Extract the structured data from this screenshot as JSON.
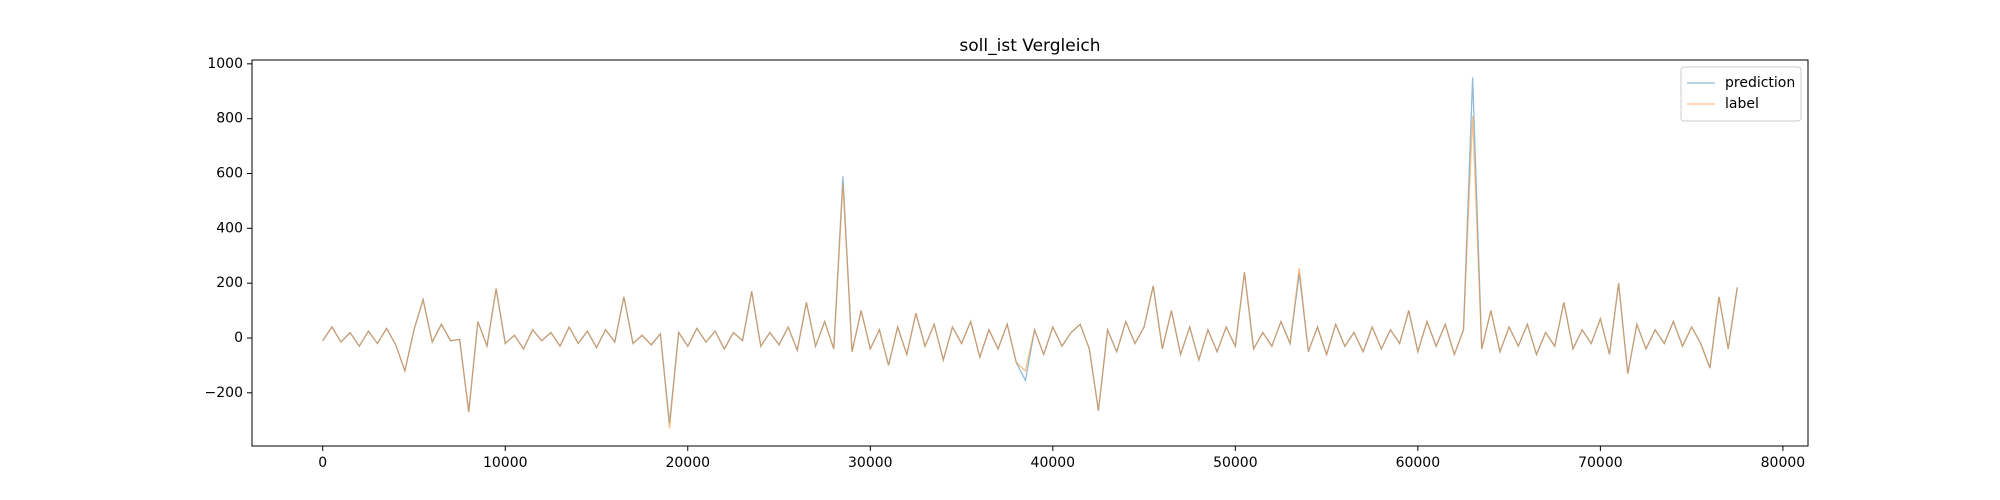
{
  "chart_data": {
    "type": "line",
    "title": "soll_ist Vergleich",
    "title_color": "#ff0000",
    "x": [
      0,
      500,
      1000,
      1500,
      2000,
      2500,
      3000,
      3500,
      4000,
      4500,
      5000,
      5500,
      6000,
      6500,
      7000,
      7500,
      8000,
      8500,
      9000,
      9500,
      10000,
      10500,
      11000,
      11500,
      12000,
      12500,
      13000,
      13500,
      14000,
      14500,
      15000,
      15500,
      16000,
      16500,
      17000,
      17500,
      18000,
      18500,
      19000,
      19500,
      20000,
      20500,
      21000,
      21500,
      22000,
      22500,
      23000,
      23500,
      24000,
      24500,
      25000,
      25500,
      26000,
      26500,
      27000,
      27500,
      28000,
      28500,
      29000,
      29500,
      30000,
      30500,
      31000,
      31500,
      32000,
      32500,
      33000,
      33500,
      34000,
      34500,
      35000,
      35500,
      36000,
      36500,
      37000,
      37500,
      38000,
      38500,
      39000,
      39500,
      40000,
      40500,
      41000,
      41500,
      42000,
      42500,
      43000,
      43500,
      44000,
      44500,
      45000,
      45500,
      46000,
      46500,
      47000,
      47500,
      48000,
      48500,
      49000,
      49500,
      50000,
      50500,
      51000,
      51500,
      52000,
      52500,
      53000,
      53500,
      54000,
      54500,
      55000,
      55500,
      56000,
      56500,
      57000,
      57500,
      58000,
      58500,
      59000,
      59500,
      60000,
      60500,
      61000,
      61500,
      62000,
      62500,
      63000,
      63500,
      64000,
      64500,
      65000,
      65500,
      66000,
      66500,
      67000,
      67500,
      68000,
      68500,
      69000,
      69500,
      70000,
      70500,
      71000,
      71500,
      72000,
      72500,
      73000,
      73500,
      74000,
      74500,
      75000,
      75500,
      76000,
      76500,
      77000,
      77500
    ],
    "series": [
      {
        "name": "prediction",
        "color": "#1f77b4",
        "values": [
          -10,
          40,
          -15,
          20,
          -30,
          25,
          -20,
          35,
          -25,
          -120,
          30,
          140,
          -15,
          50,
          -10,
          -5,
          -270,
          60,
          -30,
          180,
          -20,
          10,
          -40,
          30,
          -10,
          20,
          -30,
          40,
          -20,
          25,
          -35,
          30,
          -15,
          150,
          -20,
          10,
          -25,
          15,
          -310,
          20,
          -30,
          35,
          -15,
          25,
          -40,
          20,
          -10,
          170,
          -30,
          20,
          -25,
          40,
          -45,
          130,
          -30,
          60,
          -40,
          590,
          -50,
          100,
          -40,
          30,
          -100,
          40,
          -60,
          90,
          -30,
          50,
          -80,
          40,
          -20,
          60,
          -70,
          30,
          -40,
          50,
          -90,
          -155,
          30,
          -60,
          40,
          -30,
          20,
          50,
          -40,
          -265,
          30,
          -50,
          60,
          -20,
          40,
          190,
          -40,
          100,
          -60,
          40,
          -80,
          30,
          -50,
          40,
          -30,
          240,
          -40,
          20,
          -30,
          60,
          -20,
          235,
          -50,
          40,
          -60,
          50,
          -30,
          20,
          -50,
          40,
          -40,
          30,
          -20,
          100,
          -50,
          60,
          -30,
          50,
          -60,
          30,
          950,
          -40,
          100,
          -50,
          40,
          -30,
          50,
          -60,
          20,
          -30,
          130,
          -40,
          30,
          -20,
          70,
          -60,
          200,
          -130,
          50,
          -40,
          30,
          -20,
          60,
          -30,
          40,
          -20,
          -110,
          150,
          -40,
          185
        ]
      },
      {
        "name": "label",
        "color": "#ff7f0e",
        "values": [
          -10,
          40,
          -15,
          20,
          -30,
          25,
          -20,
          35,
          -25,
          -120,
          30,
          140,
          -15,
          50,
          -10,
          -5,
          -270,
          60,
          -30,
          180,
          -20,
          10,
          -40,
          30,
          -10,
          20,
          -30,
          40,
          -20,
          25,
          -35,
          30,
          -15,
          150,
          -20,
          10,
          -25,
          15,
          -330,
          20,
          -30,
          35,
          -15,
          25,
          -40,
          20,
          -10,
          170,
          -30,
          20,
          -25,
          40,
          -45,
          130,
          -30,
          60,
          -40,
          560,
          -50,
          100,
          -40,
          30,
          -100,
          40,
          -60,
          90,
          -30,
          50,
          -80,
          40,
          -20,
          60,
          -70,
          30,
          -40,
          50,
          -90,
          -120,
          30,
          -60,
          40,
          -30,
          20,
          50,
          -40,
          -265,
          30,
          -50,
          60,
          -20,
          40,
          190,
          -40,
          100,
          -60,
          40,
          -80,
          30,
          -50,
          40,
          -30,
          240,
          -40,
          20,
          -30,
          60,
          -20,
          255,
          -50,
          40,
          -60,
          50,
          -30,
          20,
          -50,
          40,
          -40,
          30,
          -20,
          100,
          -50,
          60,
          -30,
          50,
          -60,
          30,
          810,
          -40,
          100,
          -50,
          40,
          -30,
          50,
          -60,
          20,
          -30,
          130,
          -40,
          30,
          -20,
          70,
          -60,
          200,
          -130,
          50,
          -40,
          30,
          -20,
          60,
          -30,
          40,
          -20,
          -110,
          150,
          -40,
          185
        ]
      }
    ],
    "xlim": [
      -3875,
      81375
    ],
    "xticks": [
      0,
      10000,
      20000,
      30000,
      40000,
      50000,
      60000,
      70000,
      80000
    ],
    "ylim": [
      -394,
      1014
    ],
    "yticks": [
      {
        "value": -200,
        "label": "−200"
      },
      0,
      200,
      400,
      600,
      800,
      1000
    ],
    "grid": false,
    "legend": "upper-right"
  }
}
